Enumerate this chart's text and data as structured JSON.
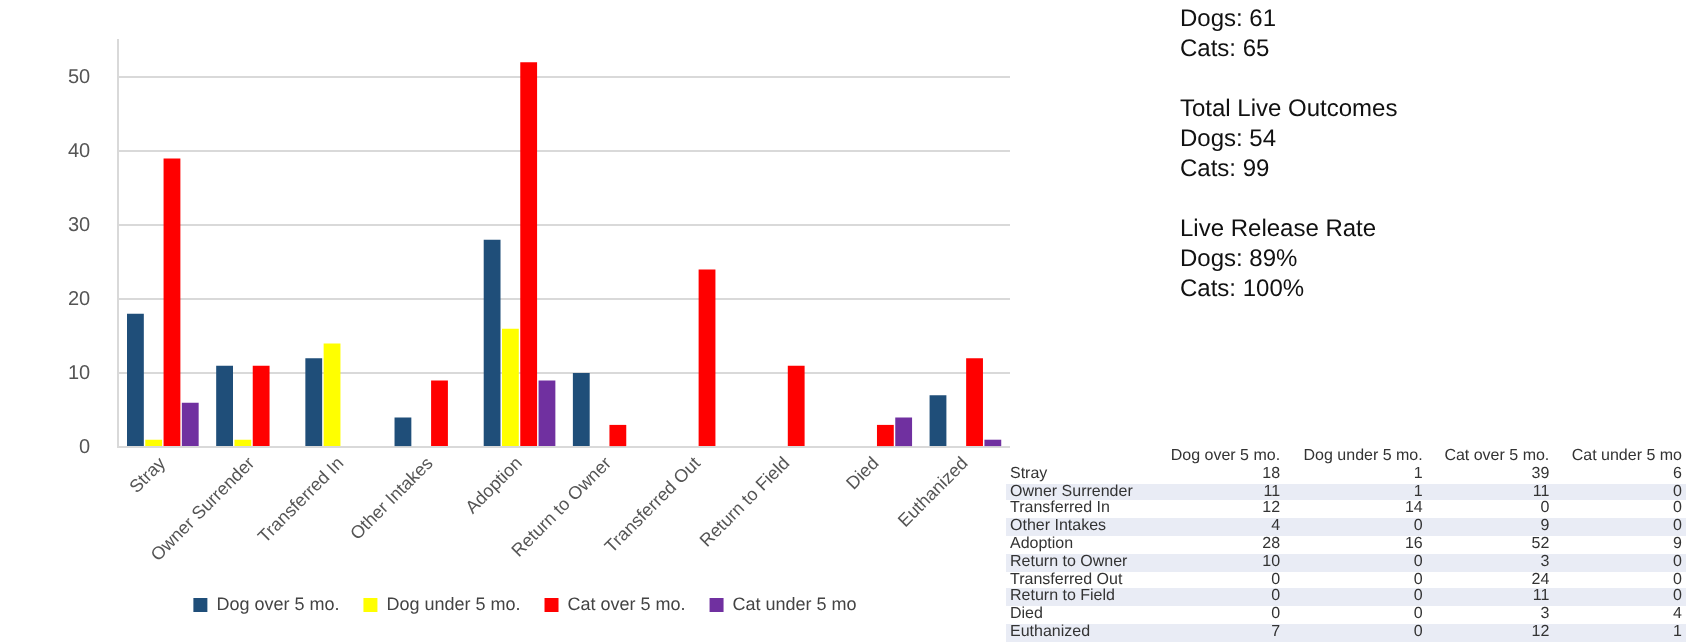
{
  "chart_data": [
    {
      "type": "bar",
      "categories": [
        "Stray",
        "Owner Surrender",
        "Transferred In",
        "Other Intakes",
        "Adoption",
        "Return to Owner",
        "Transferred Out",
        "Return to Field",
        "Died",
        "Euthanized"
      ],
      "series": [
        {
          "name": "Dog over 5 mo.",
          "color": "#1f4e79",
          "values": [
            18,
            11,
            12,
            4,
            28,
            10,
            0,
            0,
            0,
            7
          ]
        },
        {
          "name": "Dog under 5 mo.",
          "color": "#ffff00",
          "values": [
            1,
            1,
            14,
            0,
            16,
            0,
            0,
            0,
            0,
            0
          ]
        },
        {
          "name": "Cat over 5 mo.",
          "color": "#ff0000",
          "values": [
            39,
            11,
            0,
            9,
            52,
            3,
            24,
            11,
            3,
            12
          ]
        },
        {
          "name": "Cat under 5 mo",
          "color": "#7030a0",
          "values": [
            6,
            0,
            0,
            0,
            9,
            0,
            0,
            0,
            4,
            1
          ]
        }
      ],
      "ylim": [
        0,
        55
      ],
      "yticks": [
        0,
        10,
        20,
        30,
        40,
        50
      ],
      "grid": "y",
      "legend": "bottom",
      "annotations": [
        "Dogs: 61\nCats: 65",
        "Total Live Outcomes\nDogs: 54\nCats: 99",
        "Live Release Rate\nDogs: 89%\nCats: 100%"
      ]
    },
    {
      "type": "heatmap",
      "categories": [
        "Dog over 5 mo.",
        "Dog under 5 mo.",
        "Cat over 5 mo.",
        "Cat under 5 mo"
      ],
      "y_categories": [
        "Stray",
        "Owner Surrender",
        "Transferred In",
        "Other Intakes",
        "Adoption",
        "Return to Owner",
        "Transferred Out",
        "Return to Field",
        "Died",
        "Euthanized"
      ],
      "cells": [
        [
          null,
          null,
          null,
          null
        ],
        [
          null,
          null,
          null,
          null
        ],
        [
          null,
          null,
          null,
          null
        ],
        [
          null,
          null,
          null,
          null
        ],
        [
          null,
          null,
          null,
          null
        ],
        [
          null,
          null,
          null,
          null
        ],
        [
          null,
          null,
          null,
          null
        ],
        [
          null,
          null,
          null,
          null
        ],
        [
          null,
          null,
          null,
          null
        ],
        [
          null,
          null,
          null,
          null
        ]
      ],
      "cell_labels": [
        [
          "18",
          "1",
          "39",
          "6"
        ],
        [
          "11",
          "1",
          "11",
          "0"
        ],
        [
          "12",
          "14",
          "0",
          "0"
        ],
        [
          "4",
          "0",
          "9",
          "0"
        ],
        [
          "28",
          "16",
          "52",
          "9"
        ],
        [
          "10",
          "0",
          "3",
          "0"
        ],
        [
          "0",
          "0",
          "24",
          "0"
        ],
        [
          "0",
          "0",
          "11",
          "0"
        ],
        [
          "0",
          "0",
          "3",
          "4"
        ],
        [
          "7",
          "0",
          "12",
          "1"
        ]
      ]
    }
  ]
}
